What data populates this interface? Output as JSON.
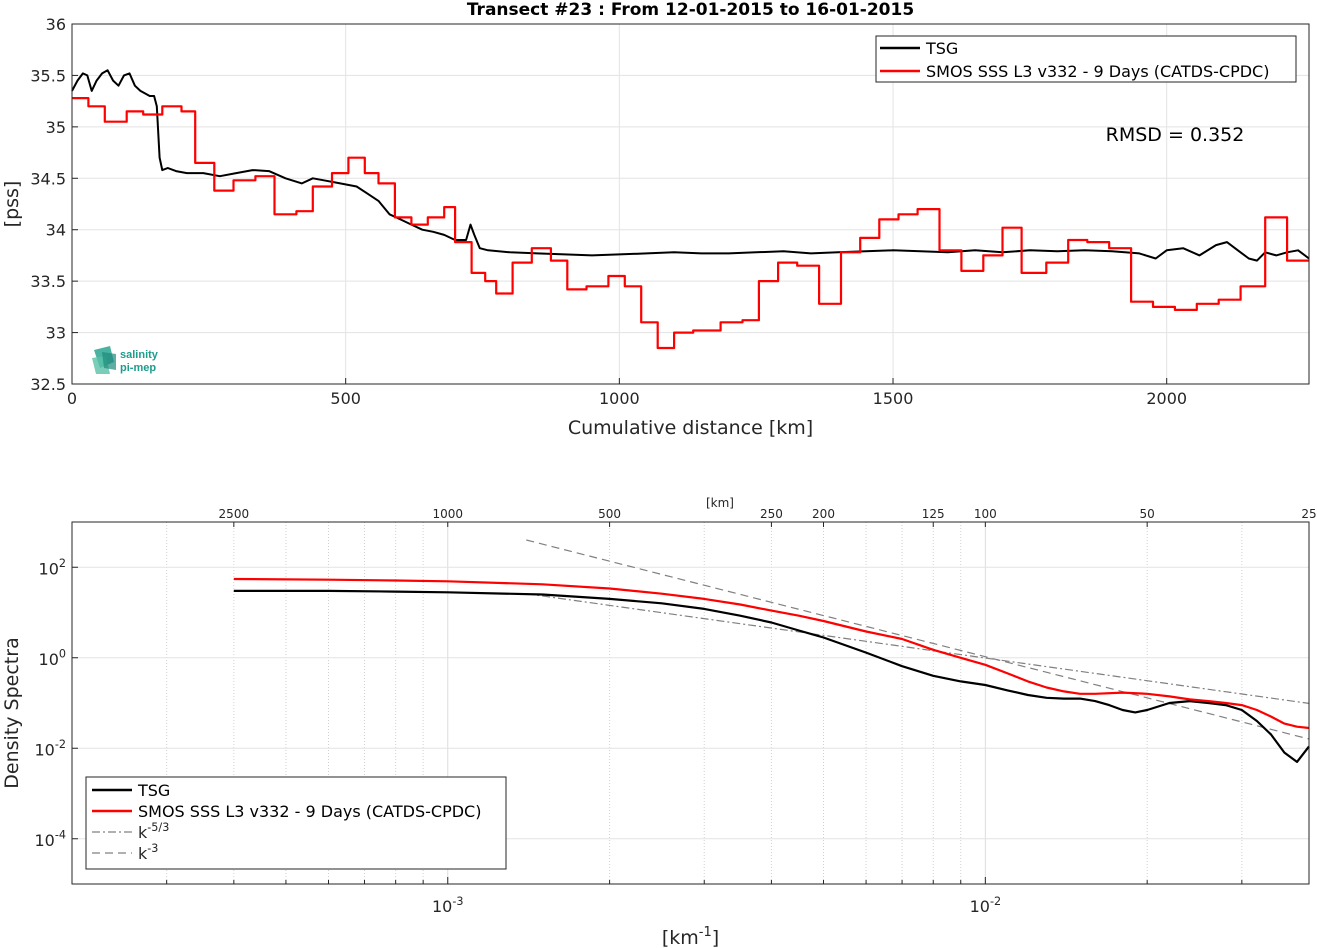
{
  "chart_data": [
    {
      "type": "line",
      "title": "Transect #23 : From 12-01-2015 to 16-01-2015",
      "xlabel": "Cumulative distance [km]",
      "ylabel": "[pss]",
      "xlim": [
        0,
        2260
      ],
      "ylim": [
        32.5,
        36
      ],
      "xticks": [
        "0",
        "500",
        "1000",
        "1500",
        "2000"
      ],
      "yticks": [
        "32.5",
        "33",
        "33.5",
        "34",
        "34.5",
        "35",
        "35.5",
        "36"
      ],
      "grid": true,
      "legend_position": "top-right",
      "annotation": "RMSD = 0.352",
      "series": [
        {
          "name": "TSG",
          "color": "#000000",
          "x": [
            0,
            10,
            20,
            28,
            36,
            45,
            55,
            65,
            75,
            85,
            95,
            105,
            115,
            125,
            135,
            142,
            150,
            155,
            160,
            165,
            175,
            190,
            210,
            240,
            270,
            300,
            330,
            360,
            390,
            420,
            440,
            460,
            490,
            520,
            540,
            560,
            580,
            600,
            620,
            640,
            660,
            680,
            700,
            720,
            728,
            735,
            745,
            760,
            800,
            850,
            900,
            950,
            1000,
            1050,
            1100,
            1150,
            1200,
            1250,
            1300,
            1350,
            1400,
            1450,
            1500,
            1550,
            1600,
            1650,
            1700,
            1750,
            1800,
            1850,
            1900,
            1950,
            1980,
            2000,
            2030,
            2060,
            2090,
            2110,
            2130,
            2150,
            2165,
            2180,
            2200,
            2220,
            2240,
            2260
          ],
          "y": [
            35.35,
            35.45,
            35.52,
            35.5,
            35.35,
            35.45,
            35.52,
            35.55,
            35.45,
            35.4,
            35.5,
            35.52,
            35.4,
            35.35,
            35.32,
            35.3,
            35.3,
            35.2,
            34.7,
            34.58,
            34.6,
            34.57,
            34.55,
            34.55,
            34.52,
            34.55,
            34.58,
            34.57,
            34.5,
            34.45,
            34.5,
            34.48,
            34.45,
            34.42,
            34.35,
            34.28,
            34.15,
            34.1,
            34.05,
            34.0,
            33.98,
            33.95,
            33.9,
            33.9,
            34.05,
            33.95,
            33.82,
            33.8,
            33.78,
            33.77,
            33.76,
            33.75,
            33.76,
            33.77,
            33.78,
            33.77,
            33.77,
            33.78,
            33.79,
            33.77,
            33.78,
            33.79,
            33.8,
            33.79,
            33.78,
            33.8,
            33.78,
            33.8,
            33.79,
            33.8,
            33.79,
            33.77,
            33.72,
            33.8,
            33.82,
            33.75,
            33.85,
            33.88,
            33.8,
            33.72,
            33.7,
            33.78,
            33.75,
            33.78,
            33.8,
            33.72
          ]
        },
        {
          "name": "SMOS SSS L3 v332 - 9 Days (CATDS-CPDC)",
          "color": "#ff0000",
          "x": [
            0,
            30,
            60,
            100,
            130,
            165,
            200,
            225,
            260,
            295,
            335,
            370,
            410,
            440,
            475,
            505,
            535,
            560,
            590,
            620,
            650,
            680,
            700,
            730,
            755,
            775,
            805,
            840,
            875,
            905,
            940,
            980,
            1010,
            1040,
            1070,
            1100,
            1135,
            1185,
            1225,
            1255,
            1290,
            1325,
            1365,
            1405,
            1440,
            1475,
            1510,
            1545,
            1585,
            1625,
            1665,
            1700,
            1735,
            1780,
            1820,
            1855,
            1895,
            1935,
            1975,
            2015,
            2055,
            2095,
            2135,
            2180,
            2220,
            2260
          ],
          "y": [
            35.28,
            35.2,
            35.05,
            35.15,
            35.12,
            35.2,
            35.15,
            34.65,
            34.38,
            34.48,
            34.52,
            34.15,
            34.18,
            34.42,
            34.55,
            34.7,
            34.55,
            34.45,
            34.12,
            34.05,
            34.12,
            34.22,
            33.88,
            33.58,
            33.5,
            33.38,
            33.68,
            33.82,
            33.7,
            33.42,
            33.45,
            33.55,
            33.45,
            33.1,
            32.85,
            33.0,
            33.02,
            33.1,
            33.12,
            33.5,
            33.68,
            33.65,
            33.28,
            33.78,
            33.92,
            34.1,
            34.15,
            34.2,
            33.8,
            33.6,
            33.75,
            34.02,
            33.58,
            33.68,
            33.9,
            33.88,
            33.82,
            33.3,
            33.25,
            33.22,
            33.28,
            33.32,
            33.45,
            34.12,
            33.7,
            33.7
          ]
        }
      ]
    },
    {
      "type": "line",
      "title": "",
      "xlabel": "[km-1]",
      "ylabel": "Density Spectra",
      "x_scale": "log",
      "y_scale": "log",
      "xlim": [
        0.0002,
        0.04
      ],
      "ylim": [
        1e-05,
        1000
      ],
      "xticks": [
        "10-3",
        "10-2"
      ],
      "yticks": [
        "10-4",
        "100",
        "102",
        "10-2"
      ],
      "top_axis_label": "[km]",
      "top_axis_ticks": [
        "2500",
        "1000",
        "500",
        "250",
        "200",
        "125",
        "100",
        "50",
        "25"
      ],
      "grid": true,
      "legend_position": "bottom-left",
      "series": [
        {
          "name": "TSG",
          "color": "#000000",
          "x": [
            0.0004,
            0.0006,
            0.0008,
            0.001,
            0.0015,
            0.002,
            0.0025,
            0.003,
            0.0035,
            0.004,
            0.0045,
            0.005,
            0.006,
            0.007,
            0.008,
            0.009,
            0.01,
            0.011,
            0.012,
            0.013,
            0.014,
            0.015,
            0.016,
            0.017,
            0.018,
            0.019,
            0.02,
            0.022,
            0.024,
            0.026,
            0.028,
            0.03,
            0.032,
            0.034,
            0.036,
            0.038,
            0.04
          ],
          "y": [
            30,
            30,
            29,
            28,
            25,
            20,
            16,
            12,
            8.5,
            6.0,
            4.0,
            2.8,
            1.3,
            0.65,
            0.4,
            0.3,
            0.25,
            0.19,
            0.15,
            0.13,
            0.125,
            0.125,
            0.11,
            0.09,
            0.07,
            0.062,
            0.07,
            0.1,
            0.11,
            0.1,
            0.09,
            0.07,
            0.04,
            0.02,
            0.008,
            0.005,
            0.011
          ]
        },
        {
          "name": "SMOS SSS L3 v332 - 9 Days (CATDS-CPDC)",
          "color": "#ff0000",
          "x": [
            0.0004,
            0.0006,
            0.0008,
            0.001,
            0.0015,
            0.002,
            0.0025,
            0.003,
            0.0035,
            0.004,
            0.0045,
            0.005,
            0.006,
            0.007,
            0.008,
            0.009,
            0.01,
            0.011,
            0.012,
            0.013,
            0.014,
            0.015,
            0.016,
            0.018,
            0.02,
            0.022,
            0.024,
            0.026,
            0.028,
            0.03,
            0.032,
            0.034,
            0.036,
            0.038,
            0.04
          ],
          "y": [
            55,
            53,
            51,
            49,
            42,
            34,
            26,
            20,
            15,
            11,
            8.5,
            6.5,
            3.8,
            2.6,
            1.5,
            1.0,
            0.7,
            0.45,
            0.3,
            0.22,
            0.18,
            0.16,
            0.16,
            0.17,
            0.16,
            0.14,
            0.12,
            0.11,
            0.1,
            0.09,
            0.07,
            0.05,
            0.035,
            0.03,
            0.028
          ]
        },
        {
          "name": "k-5/3",
          "color": "#808080",
          "x": [
            0.0014,
            0.04
          ],
          "y": [
            26,
            0.098
          ]
        },
        {
          "name": "k-3",
          "color": "#808080",
          "x": [
            0.0014,
            0.04
          ],
          "y": [
            400,
            0.016
          ]
        }
      ]
    }
  ],
  "logo": {
    "line1": "salinity",
    "line2": "pi-mep",
    "color": "#1e9c8c"
  }
}
